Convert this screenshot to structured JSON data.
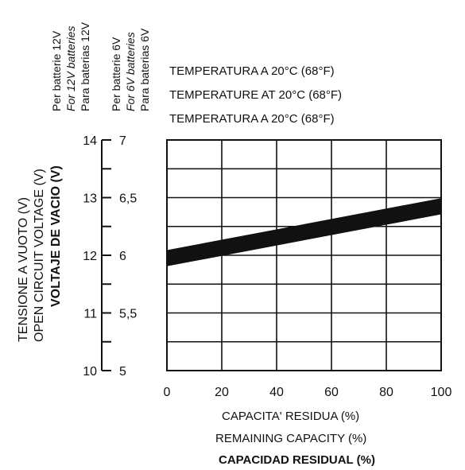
{
  "chart_data": {
    "type": "line",
    "temperature_lines": [
      "TEMPERATURA A 20°C (68°F)",
      "TEMPERATURE AT 20°C (68°F)",
      "TEMPERATURA A 20°C (68°F)"
    ],
    "battery_labels": {
      "v12": [
        "Per batterie 12V",
        "For 12V batteries",
        "Para baterias 12V"
      ],
      "v6": [
        "Per batterie 6V",
        "For 6V batteries",
        "Para baterias 6V"
      ]
    },
    "ylabel": [
      "TENSIONE A  VUOTO (V)",
      "OPEN CIRCUIT VOLTAGE (V)",
      "VOLTAJE DE VACIO (V)"
    ],
    "xlabel": [
      "CAPACITA' RESIDUA (%)",
      "REMAINING CAPACITY (%)",
      "CAPACIDAD RESIDUAL (%)"
    ],
    "xlim": [
      0,
      100
    ],
    "ylim": [
      10,
      14
    ],
    "x_ticks": [
      "0",
      "20",
      "40",
      "60",
      "80",
      "100"
    ],
    "y_ticks_12v": [
      "10",
      "11",
      "12",
      "13",
      "14"
    ],
    "y_ticks_6v": [
      "5",
      "5,5",
      "6",
      "6,5",
      "7"
    ],
    "grid": true,
    "series": [
      {
        "x": [
          0,
          100
        ],
        "y": [
          11.95,
          12.85
        ]
      }
    ]
  }
}
